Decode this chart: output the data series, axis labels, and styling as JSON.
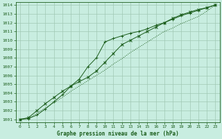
{
  "xlabel": "Graphe pression niveau de la mer (hPa)",
  "xlim": [
    -0.5,
    23.5
  ],
  "ylim": [
    1000.7,
    1014.3
  ],
  "yticks": [
    1001,
    1002,
    1003,
    1004,
    1005,
    1006,
    1007,
    1008,
    1009,
    1010,
    1011,
    1012,
    1013,
    1014
  ],
  "xticks": [
    0,
    1,
    2,
    3,
    4,
    5,
    6,
    7,
    8,
    9,
    10,
    11,
    12,
    13,
    14,
    15,
    16,
    17,
    18,
    19,
    20,
    21,
    22,
    23
  ],
  "bg_color": "#c8ede0",
  "grid_color": "#a0c8b4",
  "line_color": "#1a5c1a",
  "series_plus": [
    1001.0,
    1001.1,
    1001.5,
    1002.2,
    1003.0,
    1003.8,
    1004.8,
    1005.6,
    1007.0,
    1008.0,
    1009.8,
    1010.2,
    1010.5,
    1010.8,
    1011.0,
    1011.3,
    1011.7,
    1012.0,
    1012.4,
    1012.8,
    1013.1,
    1013.4,
    1013.7,
    1014.0
  ],
  "series_dot": [
    1001.0,
    1001.1,
    1001.7,
    1002.3,
    1002.9,
    1003.5,
    1004.2,
    1004.8,
    1005.4,
    1006.0,
    1006.6,
    1007.3,
    1007.9,
    1008.6,
    1009.2,
    1009.8,
    1010.4,
    1011.0,
    1011.4,
    1011.9,
    1012.3,
    1012.7,
    1013.3,
    1014.0
  ],
  "series_cross": [
    1001.0,
    1001.2,
    1002.0,
    1002.8,
    1003.5,
    1004.2,
    1004.8,
    1005.3,
    1005.8,
    1006.5,
    1007.5,
    1008.5,
    1009.5,
    1010.0,
    1010.5,
    1011.0,
    1011.5,
    1012.0,
    1012.5,
    1012.9,
    1013.2,
    1013.5,
    1013.7,
    1014.0
  ]
}
